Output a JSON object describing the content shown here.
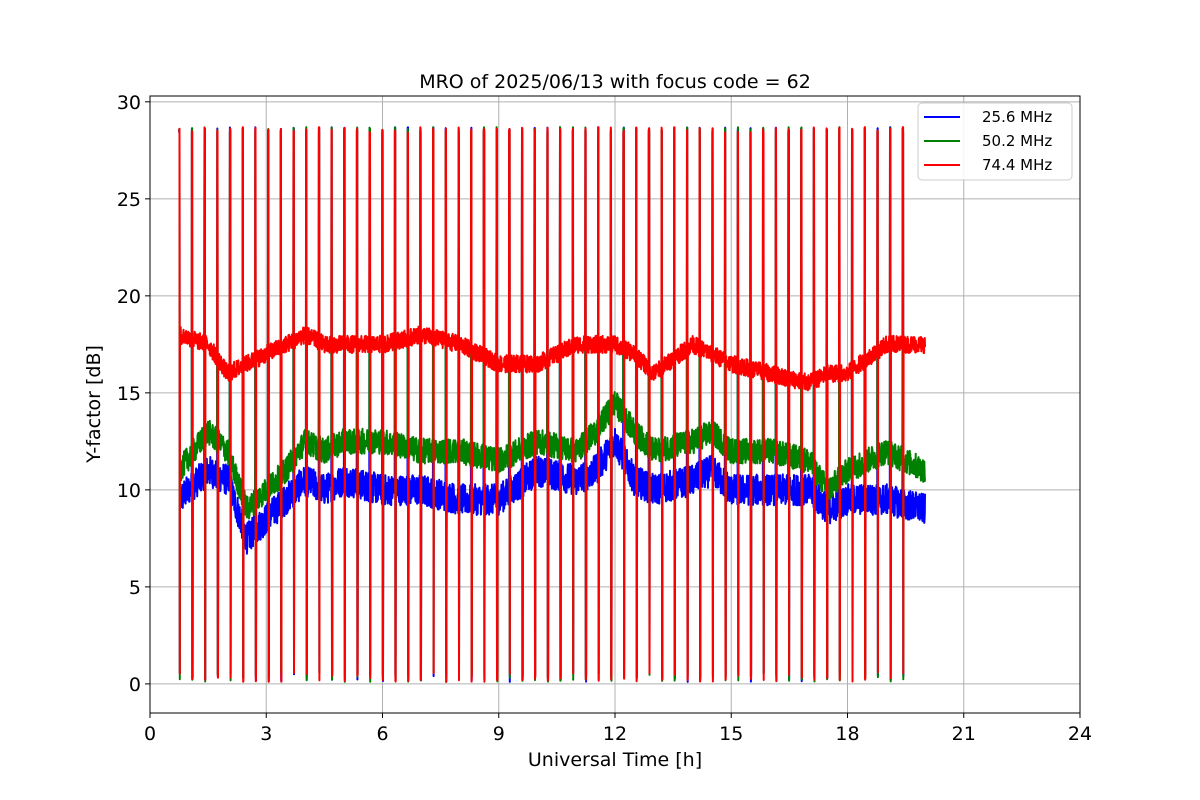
{
  "chart_data": {
    "type": "line",
    "title": "MRO of 2025/06/13 with focus code = 62",
    "xlabel": "Universal Time [h]",
    "ylabel": "Y-factor [dB]",
    "xlim": [
      0,
      24
    ],
    "ylim": [
      -1.5,
      30.3
    ],
    "xticks": [
      0,
      3,
      6,
      9,
      12,
      15,
      18,
      21,
      24
    ],
    "yticks": [
      0,
      5,
      10,
      15,
      20,
      25,
      30
    ],
    "grid": true,
    "legend_position": "top-right",
    "data_range_hours": [
      0.75,
      20.0
    ],
    "calibration_pulse_count": 58,
    "calibration_pulse_peak_db": 28.7,
    "calibration_pulse_floor_db": 0.1,
    "series": [
      {
        "name": "25.6 MHz",
        "color": "#0000ff",
        "x": [
          0.75,
          1.5,
          2.0,
          2.5,
          3.0,
          3.5,
          4.0,
          4.5,
          5.0,
          6.0,
          7.0,
          8.0,
          9.0,
          10.0,
          11.0,
          11.5,
          12.0,
          12.5,
          13.0,
          14.0,
          14.5,
          15.0,
          16.0,
          17.0,
          17.5,
          18.0,
          19.0,
          20.0
        ],
        "values": [
          9.5,
          11.0,
          10.5,
          7.5,
          8.5,
          9.5,
          10.5,
          10.0,
          10.5,
          10.0,
          10.0,
          9.5,
          9.5,
          11.0,
          10.5,
          11.0,
          12.5,
          10.5,
          10.0,
          10.5,
          11.0,
          10.0,
          10.0,
          10.0,
          9.0,
          9.5,
          9.5,
          9.0
        ]
      },
      {
        "name": "50.2 MHz",
        "color": "#008000",
        "x": [
          0.75,
          1.5,
          2.0,
          2.5,
          3.0,
          3.5,
          4.0,
          4.5,
          5.0,
          6.0,
          7.0,
          8.0,
          9.0,
          10.0,
          11.0,
          11.5,
          12.0,
          12.5,
          13.0,
          14.0,
          14.5,
          15.0,
          16.0,
          17.0,
          17.5,
          18.0,
          19.0,
          20.0
        ],
        "values": [
          11.0,
          13.0,
          12.0,
          9.0,
          10.0,
          11.0,
          12.5,
          12.0,
          12.5,
          12.5,
          12.0,
          12.0,
          11.5,
          12.5,
          12.0,
          13.0,
          14.5,
          13.0,
          12.0,
          12.5,
          13.0,
          12.0,
          12.0,
          11.5,
          10.0,
          11.0,
          12.0,
          11.0
        ]
      },
      {
        "name": "74.4 MHz",
        "color": "#ff0000",
        "x": [
          0.75,
          1.5,
          2.0,
          2.5,
          3.0,
          3.5,
          4.0,
          4.5,
          5.0,
          6.0,
          7.0,
          8.0,
          9.0,
          10.0,
          11.0,
          11.5,
          12.0,
          12.5,
          13.0,
          14.0,
          14.5,
          15.0,
          16.0,
          17.0,
          17.5,
          18.0,
          19.0,
          20.0
        ],
        "values": [
          18.0,
          17.5,
          16.0,
          16.5,
          17.0,
          17.5,
          18.0,
          17.5,
          17.5,
          17.5,
          18.0,
          17.5,
          16.5,
          16.5,
          17.5,
          17.5,
          17.5,
          17.0,
          16.0,
          17.5,
          17.0,
          16.5,
          16.0,
          15.5,
          16.0,
          16.0,
          17.5,
          17.5
        ]
      }
    ]
  }
}
